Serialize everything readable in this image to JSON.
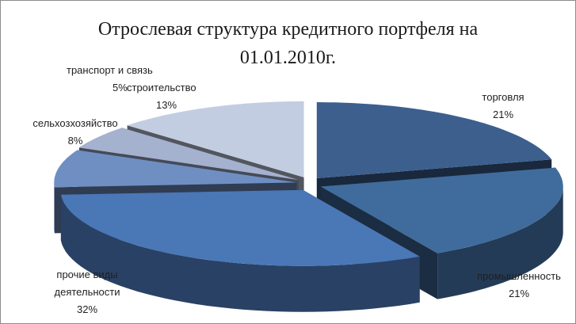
{
  "chart_data": {
    "type": "pie",
    "title_line1": "Отрослевая структура кредитного портфеля на",
    "title_line2": "01.01.2010г.",
    "slices": [
      {
        "label": "торговля",
        "value_label": "21%",
        "value": 21,
        "color": "#3c5f8e"
      },
      {
        "label": "промышленность",
        "value_label": "21%",
        "value": 21,
        "color": "#406b9d"
      },
      {
        "label": "прочие виды деятельности",
        "label_line1": "прочие виды",
        "label_line2": "деятельности",
        "value_label": "32%",
        "value": 32,
        "color": "#4a77b6"
      },
      {
        "label": "сельхозхозяйство",
        "value_label": "8%",
        "value": 8,
        "color": "#6f8fc3"
      },
      {
        "label": "транспорт и связь",
        "value_label": "5%",
        "value": 5,
        "color": "#a4b1cf"
      },
      {
        "label": "строительство",
        "value_label": "13%",
        "value": 13,
        "color": "#c3cde2"
      }
    ]
  }
}
